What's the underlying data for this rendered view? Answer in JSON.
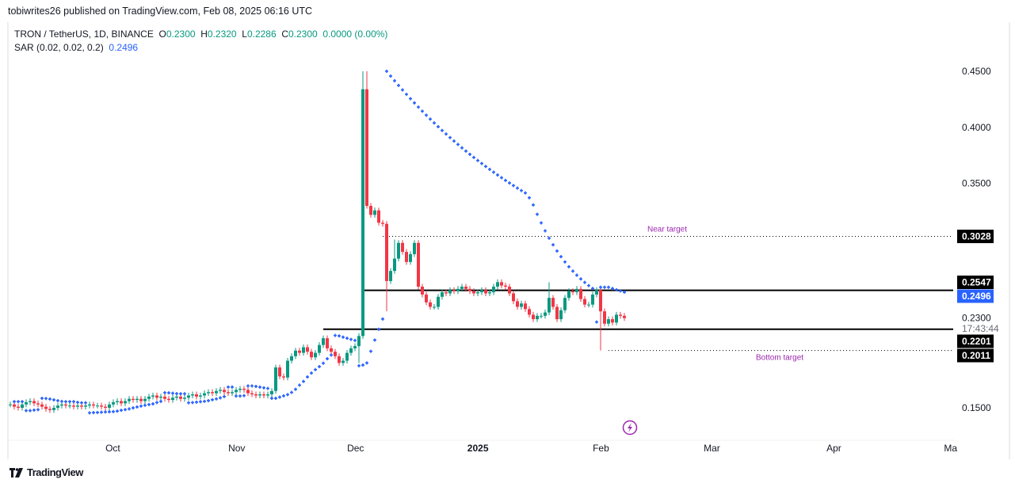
{
  "publish_line": "tobiwrites26 published on TradingView.com, Feb 08, 2025 06:16 UTC",
  "legend": {
    "symbol": "TRON / TetherUS, 1D, BINANCE",
    "o_label": "O",
    "o": "0.2300",
    "h_label": "H",
    "h": "0.2320",
    "l_label": "L",
    "l": "0.2286",
    "c_label": "C",
    "c": "0.2300",
    "change": "0.0000 (0.00%)",
    "sar_label": "SAR (0.02, 0.02, 0.2)",
    "sar_value": "0.2496"
  },
  "footer": {
    "brand": "TradingView"
  },
  "colors": {
    "up": "#089981",
    "down": "#f23645",
    "sar": "#2962ff",
    "annotation": "#9c27b0"
  },
  "chart_data": {
    "type": "candlestick",
    "ylim": [
      0.15,
      0.45
    ],
    "y_ticks": [
      "0.4500",
      "0.4000",
      "0.3500",
      "0.2300",
      "0.1500"
    ],
    "y_tick_values": [
      0.45,
      0.4,
      0.35,
      0.23,
      0.15
    ],
    "x_ticks": [
      {
        "label": "Oct",
        "index": 26
      },
      {
        "label": "Nov",
        "index": 57
      },
      {
        "label": "Dec",
        "index": 87
      },
      {
        "label": "2025",
        "index": 118
      },
      {
        "label": "Feb",
        "index": 149
      },
      {
        "label": "Mar",
        "index": 177
      },
      {
        "label": "Apr",
        "index": 208
      },
      {
        "label": "Ma",
        "index": 237
      }
    ],
    "closes": [
      0.153,
      0.151,
      0.15,
      0.153,
      0.155,
      0.156,
      0.154,
      0.153,
      0.151,
      0.149,
      0.148,
      0.15,
      0.152,
      0.153,
      0.152,
      0.152,
      0.151,
      0.152,
      0.151,
      0.152,
      0.153,
      0.152,
      0.152,
      0.151,
      0.15,
      0.153,
      0.155,
      0.156,
      0.154,
      0.156,
      0.158,
      0.157,
      0.158,
      0.156,
      0.158,
      0.16,
      0.161,
      0.159,
      0.16,
      0.158,
      0.157,
      0.159,
      0.16,
      0.158,
      0.159,
      0.161,
      0.162,
      0.16,
      0.161,
      0.163,
      0.164,
      0.163,
      0.165,
      0.166,
      0.164,
      0.163,
      0.164,
      0.166,
      0.167,
      0.166,
      0.163,
      0.162,
      0.161,
      0.162,
      0.161,
      0.162,
      0.165,
      0.186,
      0.178,
      0.177,
      0.192,
      0.196,
      0.201,
      0.199,
      0.204,
      0.2,
      0.195,
      0.199,
      0.206,
      0.212,
      0.203,
      0.2,
      0.196,
      0.19,
      0.192,
      0.199,
      0.203,
      0.205,
      0.214,
      0.434,
      0.33,
      0.322,
      0.326,
      0.315,
      0.314,
      0.263,
      0.272,
      0.283,
      0.297,
      0.289,
      0.28,
      0.287,
      0.297,
      0.258,
      0.251,
      0.244,
      0.24,
      0.24,
      0.249,
      0.253,
      0.252,
      0.255,
      0.254,
      0.256,
      0.258,
      0.256,
      0.254,
      0.252,
      0.253,
      0.255,
      0.252,
      0.253,
      0.258,
      0.262,
      0.259,
      0.258,
      0.252,
      0.245,
      0.24,
      0.243,
      0.238,
      0.233,
      0.229,
      0.232,
      0.232,
      0.235,
      0.248,
      0.24,
      0.229,
      0.237,
      0.248,
      0.254,
      0.253,
      0.256,
      0.247,
      0.242,
      0.242,
      0.251,
      0.255,
      0.236,
      0.225,
      0.229,
      0.226,
      0.233,
      0.232,
      0.23
    ],
    "wick_overrides": {
      "88": {
        "l": 0.19
      },
      "89": {
        "h": 0.45
      },
      "90": {
        "h": 0.45
      },
      "95": {
        "l": 0.236
      },
      "97": {
        "h": 0.3
      },
      "136": {
        "h": 0.262
      },
      "149": {
        "l": 0.2011
      }
    },
    "sar": {
      "start": 0.02,
      "step": 0.02,
      "max": 0.2,
      "last": 0.2496
    },
    "levels": [
      {
        "name": "near-target",
        "value": 0.3028,
        "label": "0.3028",
        "style": "dotted",
        "from_index": 94,
        "text": "Near target"
      },
      {
        "name": "resistance",
        "value": 0.2547,
        "label": "0.2547",
        "style": "solid",
        "from_index": 89
      },
      {
        "name": "support",
        "value": 0.2201,
        "label": "0.2201",
        "style": "solid",
        "from_index": 79
      },
      {
        "name": "bottom-target",
        "value": 0.2011,
        "label": "0.2011",
        "style": "dotted",
        "from_index": 151,
        "text": "Bottom target"
      }
    ],
    "last_price": "0.2300",
    "countdown": "17:43:44"
  }
}
